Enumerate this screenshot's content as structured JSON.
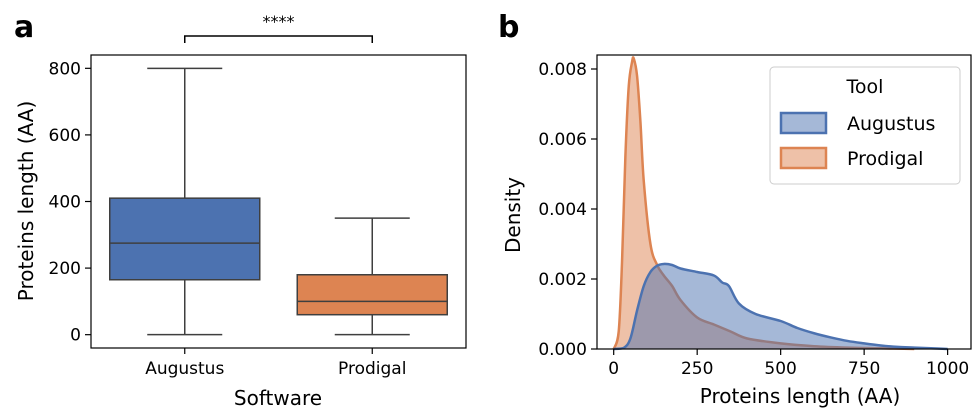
{
  "chart_data": [
    {
      "panel": "a",
      "type": "box",
      "xlabel": "Software",
      "ylabel": "Proteins length (AA)",
      "ylim": [
        -40,
        840
      ],
      "yticks": [
        0,
        200,
        400,
        600,
        800
      ],
      "categories": [
        "Augustus",
        "Prodigal"
      ],
      "boxes": [
        {
          "name": "Augustus",
          "whisker_low": 0,
          "q1": 165,
          "median": 275,
          "q3": 410,
          "whisker_high": 800
        },
        {
          "name": "Prodigal",
          "whisker_low": 0,
          "q1": 60,
          "median": 100,
          "q3": 180,
          "whisker_high": 350
        }
      ],
      "significance": {
        "label": "****",
        "between": [
          "Augustus",
          "Prodigal"
        ]
      },
      "colors": [
        "#4c72b0",
        "#dd8452"
      ]
    },
    {
      "panel": "b",
      "type": "area",
      "xlabel": "Proteins length (AA)",
      "ylabel": "Density",
      "xlim": [
        -50,
        1070
      ],
      "ylim": [
        0,
        0.0084
      ],
      "xticks": [
        0,
        250,
        500,
        750,
        1000
      ],
      "yticks": [
        0.0,
        0.002,
        0.004,
        0.006,
        0.008
      ],
      "ytick_labels": [
        "0.000",
        "0.002",
        "0.004",
        "0.006",
        "0.008"
      ],
      "legend": {
        "title": "Tool",
        "placement": "top-right",
        "entries": [
          "Augustus",
          "Prodigal"
        ]
      },
      "series": [
        {
          "name": "Augustus",
          "color": "#4c72b0",
          "x": [
            0,
            30,
            50,
            70,
            90,
            110,
            130,
            150,
            175,
            200,
            250,
            300,
            325,
            345,
            375,
            425,
            500,
            550,
            600,
            650,
            700,
            750,
            800,
            850,
            900,
            950,
            1000
          ],
          "y": [
            0,
            3e-05,
            0.0003,
            0.0011,
            0.0018,
            0.0022,
            0.00238,
            0.00243,
            0.0024,
            0.0023,
            0.0022,
            0.0021,
            0.0019,
            0.0018,
            0.0013,
            0.001,
            0.0008,
            0.0006,
            0.00045,
            0.00033,
            0.00023,
            0.00016,
            0.0001,
            6e-05,
            4e-05,
            2e-05,
            0
          ]
        },
        {
          "name": "Prodigal",
          "color": "#dd8452",
          "x": [
            0,
            15,
            25,
            35,
            45,
            55,
            60,
            70,
            80,
            90,
            110,
            130,
            150,
            175,
            200,
            250,
            300,
            350,
            400,
            500,
            600,
            700,
            800,
            900
          ],
          "y": [
            0,
            0.0005,
            0.0025,
            0.0055,
            0.0075,
            0.0082,
            0.0083,
            0.0078,
            0.0065,
            0.0048,
            0.003,
            0.0024,
            0.0021,
            0.0018,
            0.0014,
            0.0009,
            0.0007,
            0.0005,
            0.0003,
            0.00016,
            8e-05,
            4e-05,
            2e-05,
            0
          ]
        }
      ]
    }
  ]
}
